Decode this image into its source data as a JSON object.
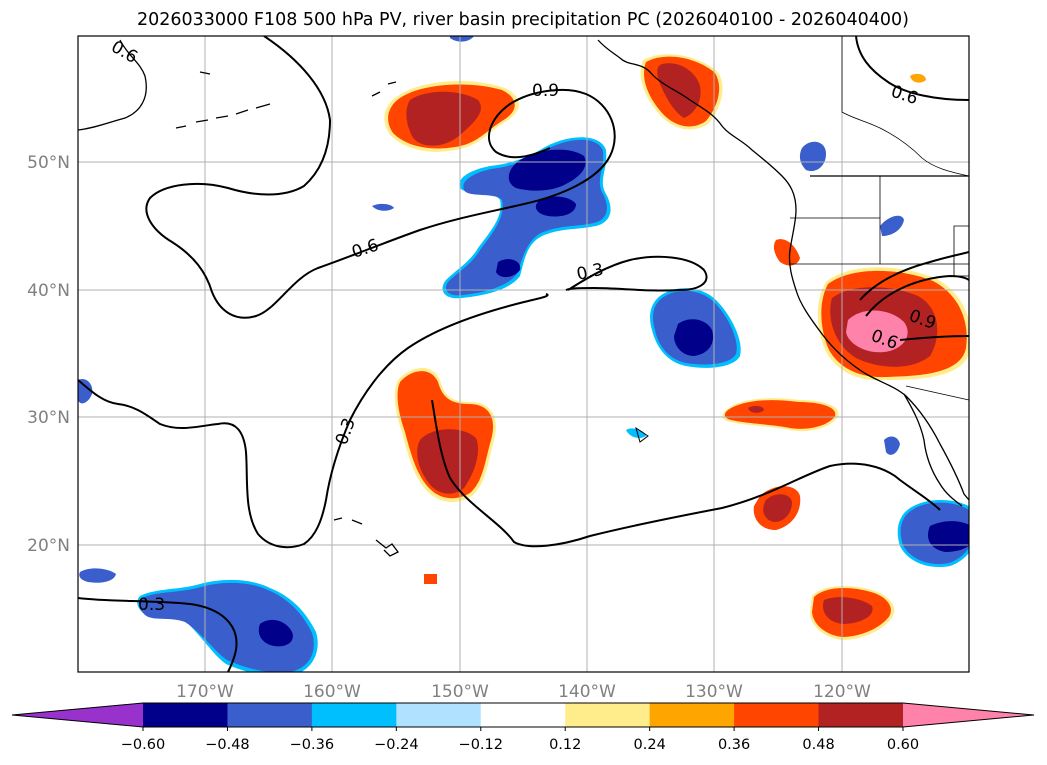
{
  "title": "2026033000 F108 500 hPa PV, river basin precipitation PC (2026040100 - 2026040400)",
  "map": {
    "lat_labels": [
      "50°N",
      "40°N",
      "30°N",
      "20°N"
    ],
    "lon_labels": [
      "170°W",
      "160°W",
      "150°W",
      "140°W",
      "130°W",
      "120°W"
    ],
    "contour_labels": [
      "0.6",
      "0.9",
      "0.6",
      "0.3",
      "0.3",
      "0.3",
      "0.6",
      "0.9",
      "0.6"
    ]
  },
  "colorbar": {
    "ticks": [
      "−0.60",
      "−0.48",
      "−0.36",
      "−0.24",
      "−0.12",
      "0.12",
      "0.24",
      "0.36",
      "0.48",
      "0.60"
    ],
    "colors": [
      "#9932cc",
      "#00008b",
      "#3a5fcd",
      "#00bfff",
      "#b0e2ff",
      "#ffffff",
      "#ffec8b",
      "#ffa500",
      "#ff4500",
      "#b22222",
      "#ff82ab"
    ]
  },
  "colors": {
    "dark_red": "#b22222",
    "orange_red": "#ff4500",
    "orange": "#ffa500",
    "pink": "#ff82ab",
    "navy": "#00008b",
    "royal_blue": "#3a5fcd",
    "sky_blue": "#00bfff",
    "grid": "#b0b0b0"
  }
}
